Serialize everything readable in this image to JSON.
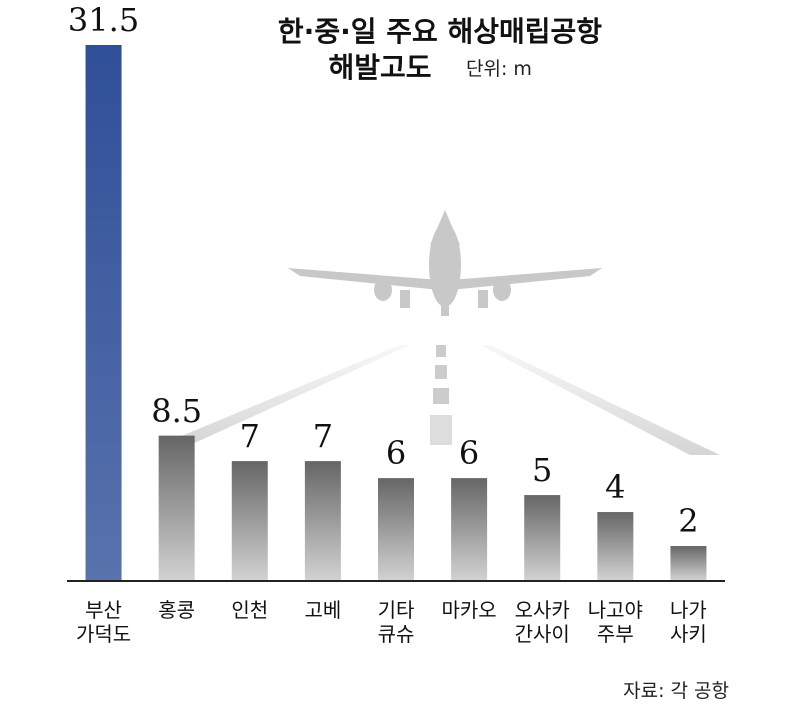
{
  "chart_data": {
    "type": "bar",
    "title": "한·중·일 주요 해상매립공항",
    "subtitle": "해발고도",
    "unit": "단위: m",
    "source": "자료: 각 공항",
    "categories": [
      "부산\n가덕도",
      "홍콩",
      "인천",
      "고베",
      "기타\n큐슈",
      "마카오",
      "오사카\n간사이",
      "나고야\n주부",
      "나가\n사키"
    ],
    "values": [
      31.5,
      8.5,
      7,
      7,
      6,
      6,
      5,
      4,
      2
    ],
    "colors": [
      "#2f4f98",
      "#666666",
      "#666666",
      "#666666",
      "#666666",
      "#666666",
      "#666666",
      "#666666",
      "#666666"
    ]
  }
}
